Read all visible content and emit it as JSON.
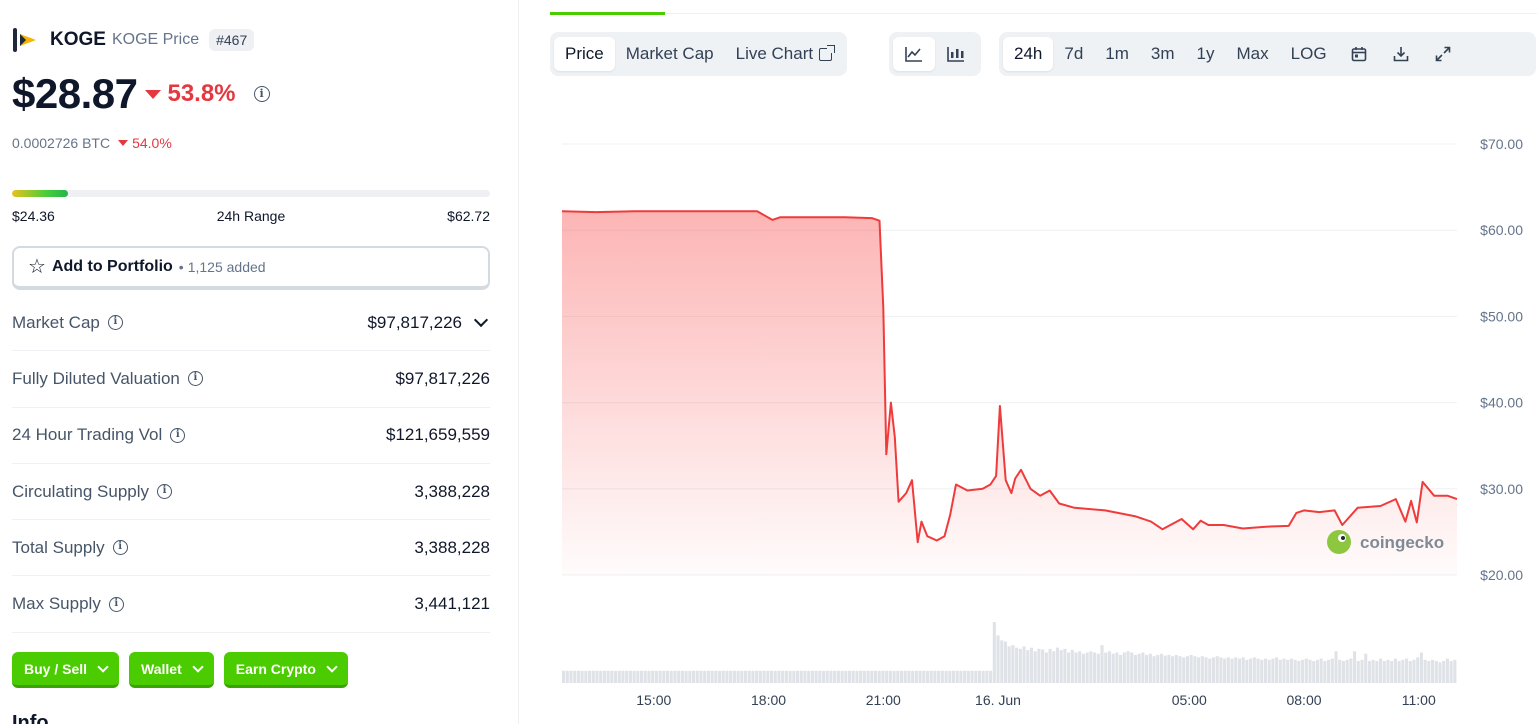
{
  "coin": {
    "symbol": "KOGE",
    "subtitle": "KOGE Price",
    "rank": "#467",
    "price": "$28.87",
    "change_24h": "53.8%",
    "btc_price": "0.0002726 BTC",
    "btc_change": "54.0%"
  },
  "range": {
    "low": "$24.36",
    "label": "24h Range",
    "high": "$62.72",
    "position_fraction": 0.118
  },
  "portfolio": {
    "label": "Add to Portfolio",
    "dot": "•",
    "count": "1,125 added"
  },
  "stats": [
    {
      "label": "Market Cap",
      "value": "$97,817,226"
    },
    {
      "label": "Fully Diluted Valuation",
      "value": "$97,817,226"
    },
    {
      "label": "24 Hour Trading Vol",
      "value": "$121,659,559"
    },
    {
      "label": "Circulating Supply",
      "value": "3,388,228"
    },
    {
      "label": "Total Supply",
      "value": "3,388,228"
    },
    {
      "label": "Max Supply",
      "value": "3,441,121"
    }
  ],
  "actions": [
    "Buy / Sell",
    "Wallet",
    "Earn Crypto"
  ],
  "info_heading": "Info",
  "toolbar": {
    "views": [
      "Price",
      "Market Cap",
      "Live Chart"
    ],
    "ranges": [
      "24h",
      "7d",
      "1m",
      "3m",
      "1y",
      "Max",
      "LOG"
    ],
    "active_view": "Price",
    "active_range": "24h"
  },
  "icons": {
    "info": "info-icon",
    "star": "star-icon",
    "line_chart": "line-chart-icon",
    "candle_chart": "candlestick-icon",
    "calendar": "calendar-icon",
    "download": "download-icon",
    "fullscreen": "expand-icon"
  },
  "colors": {
    "down": "#e5373f",
    "line": "#ef3b3b",
    "accent_green": "#4bcc00",
    "volume": "#dfe3e8"
  },
  "watermark": "coingecko",
  "chart_data": {
    "type": "area",
    "ylim": [
      20,
      70
    ],
    "yticks": [
      20,
      30,
      40,
      50,
      60,
      70
    ],
    "ytick_labels": [
      "$20.00",
      "$30.00",
      "$40.00",
      "$50.00",
      "$60.00",
      "$70.00"
    ],
    "xtick_labels": [
      "15:00",
      "18:00",
      "21:00",
      "16. Jun",
      "05:00",
      "08:00",
      "11:00"
    ],
    "xtick_hours": [
      15,
      18,
      21,
      24,
      29,
      32,
      35
    ],
    "x_range_hours": [
      12.6,
      36.0
    ],
    "grid": true,
    "series": [
      {
        "x_hours": [
          12.6,
          13.5,
          14.5,
          15.5,
          16.5,
          17.0,
          17.7,
          18.1,
          18.3,
          19.0,
          20.0,
          20.7,
          20.9,
          21.0,
          21.08,
          21.2,
          21.3,
          21.4,
          21.6,
          21.75,
          21.9,
          22.0,
          22.15,
          22.4,
          22.6,
          22.75,
          22.9,
          23.2,
          23.6,
          23.8,
          23.95,
          24.05,
          24.2,
          24.35,
          24.45,
          24.6,
          24.85,
          25.1,
          25.35,
          25.6,
          26.0,
          26.8,
          27.6,
          28.0,
          28.3,
          28.8,
          29.1,
          29.3,
          29.5,
          29.9,
          30.4,
          31.0,
          31.6,
          31.8,
          32.0,
          32.4,
          32.8,
          33.0,
          33.4,
          34.0,
          34.4,
          34.65,
          34.8,
          34.95,
          35.1,
          35.4,
          35.75,
          36.0
        ],
        "y": [
          62.2,
          62.1,
          62.2,
          62.2,
          62.2,
          62.2,
          62.2,
          61.2,
          61.5,
          61.5,
          61.5,
          61.4,
          61.1,
          51.0,
          34.0,
          40.0,
          36.0,
          28.5,
          29.5,
          31.0,
          23.8,
          26.2,
          24.5,
          24.0,
          24.5,
          27.0,
          30.5,
          29.8,
          30.0,
          30.5,
          31.5,
          39.6,
          31.0,
          29.5,
          31.2,
          32.2,
          30.0,
          29.2,
          29.8,
          28.3,
          27.8,
          27.5,
          26.8,
          26.2,
          25.3,
          26.5,
          25.3,
          26.3,
          25.8,
          25.8,
          25.4,
          25.6,
          25.7,
          27.2,
          27.5,
          27.3,
          27.5,
          25.8,
          27.8,
          28.0,
          28.8,
          26.2,
          28.6,
          26.1,
          30.8,
          29.2,
          29.2,
          28.8
        ]
      }
    ],
    "volume": {
      "x_hours_start": 12.6,
      "x_hours_end": 36.0,
      "relative": [
        0.2,
        0.2,
        0.2,
        0.2,
        0.2,
        0.2,
        0.2,
        0.2,
        0.2,
        0.2,
        0.2,
        0.2,
        0.2,
        0.2,
        0.2,
        0.2,
        0.2,
        0.2,
        0.2,
        0.2,
        0.2,
        0.2,
        0.2,
        0.2,
        0.2,
        0.2,
        0.2,
        0.2,
        0.2,
        0.2,
        0.2,
        0.2,
        0.2,
        0.2,
        0.2,
        0.2,
        0.2,
        0.2,
        0.2,
        0.2,
        0.2,
        0.2,
        0.2,
        0.2,
        0.2,
        0.2,
        0.2,
        0.2,
        0.2,
        0.2,
        0.2,
        0.2,
        0.2,
        0.2,
        0.2,
        0.2,
        0.2,
        0.2,
        0.2,
        0.2,
        0.2,
        0.2,
        0.2,
        0.2,
        0.2,
        0.2,
        0.2,
        0.2,
        0.2,
        0.2,
        0.2,
        0.2,
        0.2,
        0.2,
        0.2,
        0.2,
        0.2,
        0.2,
        0.2,
        0.2,
        0.2,
        0.2,
        0.2,
        0.2,
        0.2,
        0.2,
        0.2,
        0.2,
        0.2,
        0.2,
        0.2,
        0.2,
        0.2,
        0.2,
        0.2,
        0.2,
        0.2,
        0.2,
        0.2,
        0.2,
        0.2,
        0.2,
        0.2,
        0.2,
        0.2,
        0.2,
        0.2,
        0.2,
        0.2,
        0.2,
        0.2,
        0.2,
        0.2,
        0.2,
        0.2,
        0.2,
        1.0,
        0.78,
        0.7,
        0.68,
        0.6,
        0.62,
        0.58,
        0.56,
        0.6,
        0.54,
        0.58,
        0.52,
        0.56,
        0.55,
        0.5,
        0.56,
        0.52,
        0.58,
        0.54,
        0.56,
        0.5,
        0.54,
        0.5,
        0.52,
        0.48,
        0.5,
        0.52,
        0.5,
        0.48,
        0.62,
        0.5,
        0.52,
        0.48,
        0.5,
        0.46,
        0.5,
        0.52,
        0.5,
        0.46,
        0.48,
        0.5,
        0.46,
        0.48,
        0.44,
        0.46,
        0.48,
        0.45,
        0.46,
        0.44,
        0.46,
        0.44,
        0.42,
        0.44,
        0.46,
        0.44,
        0.42,
        0.44,
        0.42,
        0.4,
        0.42,
        0.44,
        0.42,
        0.4,
        0.42,
        0.4,
        0.42,
        0.4,
        0.42,
        0.38,
        0.4,
        0.42,
        0.4,
        0.38,
        0.4,
        0.38,
        0.4,
        0.42,
        0.38,
        0.4,
        0.38,
        0.4,
        0.38,
        0.36,
        0.38,
        0.4,
        0.38,
        0.36,
        0.38,
        0.4,
        0.36,
        0.38,
        0.4,
        0.52,
        0.38,
        0.36,
        0.38,
        0.4,
        0.52,
        0.36,
        0.38,
        0.48,
        0.36,
        0.38,
        0.36,
        0.4,
        0.36,
        0.38,
        0.36,
        0.4,
        0.36,
        0.38,
        0.4,
        0.36,
        0.38,
        0.42,
        0.5,
        0.38,
        0.36,
        0.38,
        0.36,
        0.34,
        0.36,
        0.4,
        0.36,
        0.38
      ]
    }
  }
}
